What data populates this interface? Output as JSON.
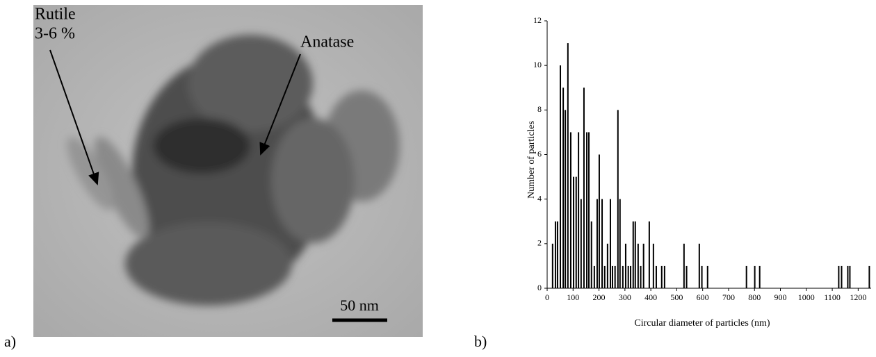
{
  "figure": {
    "panel_a": {
      "label": "a)",
      "annotations": [
        "Rutile",
        "3-6 %",
        "Anatase"
      ],
      "scale_bar": "50 nm"
    },
    "panel_b": {
      "label": "b)"
    }
  },
  "chart_data": {
    "type": "bar",
    "xlabel": "Circular diameter of particles (nm)",
    "ylabel": "Number of particles",
    "color": "#000000",
    "x": [
      21,
      32,
      40,
      51,
      62,
      70,
      80,
      91,
      102,
      112,
      121,
      131,
      142,
      153,
      161,
      171,
      182,
      193,
      201,
      212,
      222,
      233,
      244,
      252,
      262,
      273,
      281,
      292,
      303,
      313,
      322,
      332,
      340,
      351,
      361,
      372,
      394,
      410,
      421,
      442,
      453,
      528,
      538,
      587,
      597,
      619,
      769,
      801,
      820,
      1125,
      1136,
      1160,
      1168,
      1243
    ],
    "values": [
      2,
      3,
      3,
      10,
      9,
      8,
      11,
      7,
      5,
      5,
      7,
      4,
      9,
      7,
      7,
      3,
      1,
      4,
      6,
      4,
      1,
      2,
      4,
      1,
      1,
      8,
      4,
      1,
      2,
      1,
      1,
      3,
      3,
      2,
      1,
      2,
      3,
      2,
      1,
      1,
      1,
      2,
      1,
      2,
      1,
      1,
      1,
      1,
      1,
      1,
      1,
      1,
      1,
      1
    ],
    "xlim": [
      0,
      1250
    ],
    "xticks": [
      0,
      100,
      200,
      300,
      400,
      500,
      600,
      700,
      800,
      900,
      1000,
      1100,
      1200
    ],
    "ylim": [
      0,
      12
    ],
    "yticks": [
      0,
      2,
      4,
      6,
      8,
      10,
      12
    ]
  }
}
